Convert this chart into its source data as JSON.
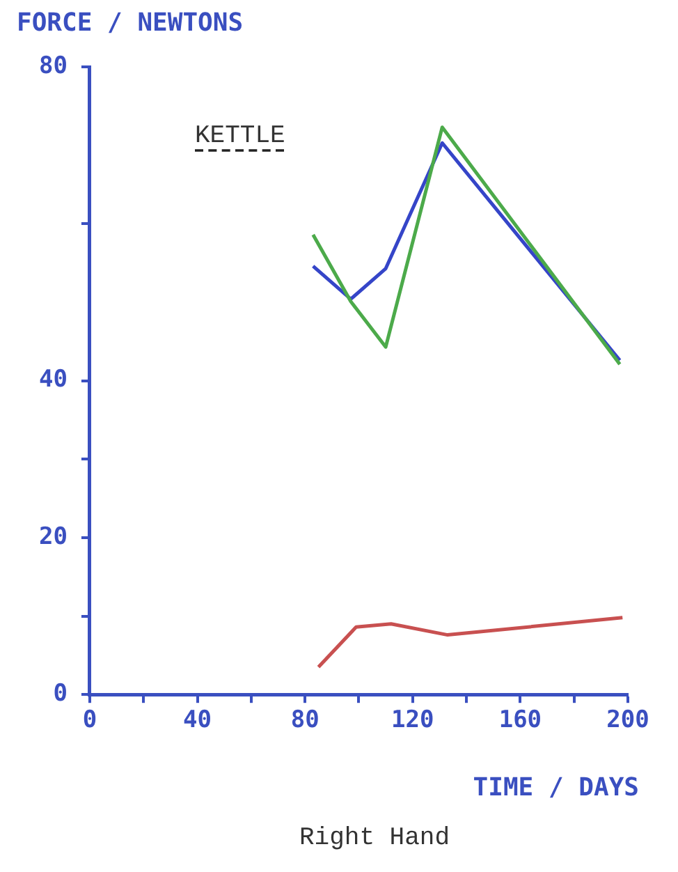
{
  "chart_data": {
    "type": "line",
    "title": "Right Hand",
    "xlabel": "TIME / DAYS",
    "ylabel": "FORCE / NEWTONS",
    "annotations": [
      "KETTLE"
    ],
    "xlim": [
      0,
      200
    ],
    "xticks": [
      0,
      {
        "value": 20,
        "label": null
      },
      40,
      {
        "value": 60,
        "label": null
      },
      80,
      {
        "value": 100,
        "label": null
      },
      120,
      {
        "value": 140,
        "label": null
      },
      160,
      {
        "value": 180,
        "label": null
      },
      200
    ],
    "ylim": [
      0,
      80
    ],
    "yticks": [
      0,
      {
        "value": 10,
        "label": null
      },
      20,
      {
        "value": 30,
        "label": null
      },
      40,
      {
        "value": 60,
        "label": null
      },
      80
    ],
    "grid": false,
    "legend": false,
    "marker": "none",
    "line_style": "solid",
    "series": [
      {
        "color": "#4caa4a",
        "x": [
          83,
          97,
          110,
          131,
          197
        ],
        "values": [
          58.6,
          50.1,
          44.3,
          72.3,
          42.1
        ]
      },
      {
        "color": "#3545c8",
        "x": [
          83,
          97,
          110,
          131,
          197
        ],
        "values": [
          54.6,
          50.4,
          54.3,
          70.3,
          42.6
        ]
      },
      {
        "color": "#c85050",
        "x": [
          85,
          99,
          112,
          133,
          198
        ],
        "values": [
          3.5,
          8.6,
          9.0,
          7.6,
          9.8
        ]
      }
    ]
  }
}
